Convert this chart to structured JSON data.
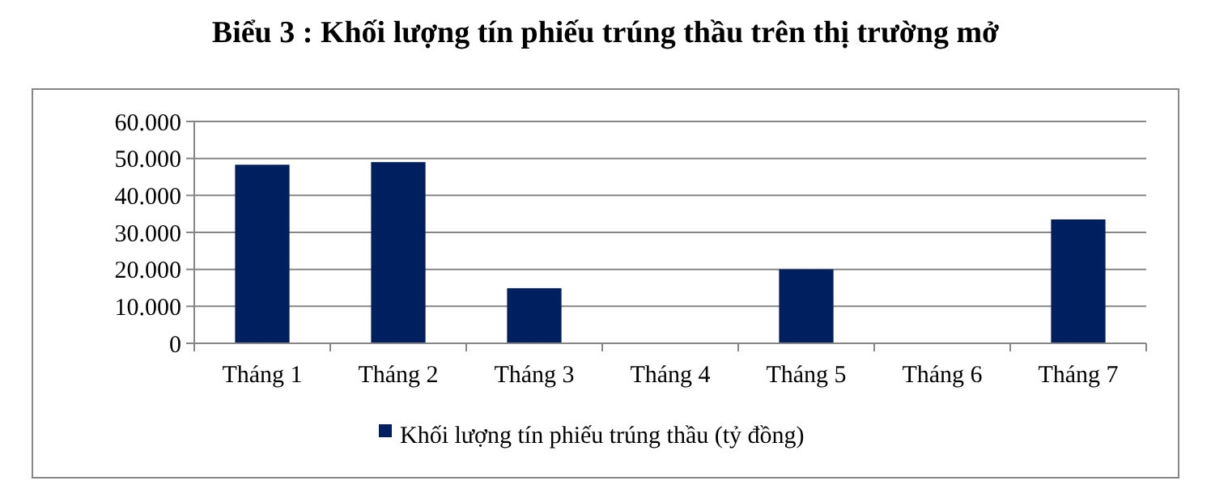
{
  "chart_data": {
    "type": "bar",
    "title": "Biểu 3 : Khối lượng tín phiếu trúng thầu trên thị trường mở",
    "categories": [
      "Tháng 1",
      "Tháng 2",
      "Tháng 3",
      "Tháng 4",
      "Tháng 5",
      "Tháng 6",
      "Tháng 7"
    ],
    "series": [
      {
        "name": "Khối lượng tín phiếu trúng thầu (tỷ đồng)",
        "color": "#001f5f",
        "values": [
          48300,
          49000,
          14900,
          0,
          20000,
          0,
          33500
        ]
      }
    ],
    "ylim": [
      0,
      60000
    ],
    "yticks": [
      0,
      {
        "value": 10000,
        "label": "10.000"
      },
      {
        "value": 20000,
        "label": "20.000"
      },
      {
        "value": 30000,
        "label": "30.000"
      },
      {
        "value": 40000,
        "label": "40.000"
      },
      {
        "value": 50000,
        "label": "50.000"
      },
      {
        "value": 60000,
        "label": "60.000"
      }
    ],
    "grid": "y",
    "legend": "bottom"
  }
}
